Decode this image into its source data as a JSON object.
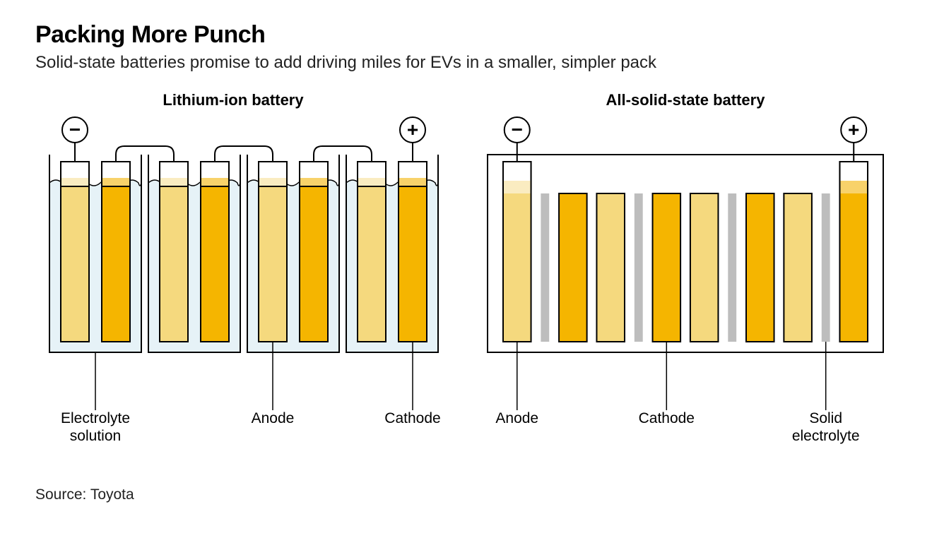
{
  "title": "Packing More Punch",
  "subtitle": "Solid-state batteries promise to add driving miles for EVs in a smaller, simpler pack",
  "source": "Source: Toyota",
  "style": {
    "stroke": "#000000",
    "stroke_width": 2,
    "liquid_fill": "#e6f2f7",
    "anode_fill": "#f5d97e",
    "anode_top": "#faecc1",
    "cathode_fill": "#f5b500",
    "cathode_top": "#f8d26a",
    "solid_electrolyte_fill": "#bdbdbd",
    "terminal_fill": "#ffffff",
    "label_fontsize": 21,
    "heading_fontsize": 22,
    "heading_weight": 700
  },
  "left": {
    "heading": "Lithium-ion battery",
    "labels": {
      "electrolyte": "Electrolyte solution",
      "anode": "Anode",
      "cathode": "Cathode"
    },
    "terminals": {
      "neg": "−",
      "pos": "+"
    }
  },
  "right": {
    "heading": "All-solid-state battery",
    "labels": {
      "anode": "Anode",
      "cathode": "Cathode",
      "solid": "Solid electrolyte"
    },
    "terminals": {
      "neg": "−",
      "pos": "+"
    }
  }
}
